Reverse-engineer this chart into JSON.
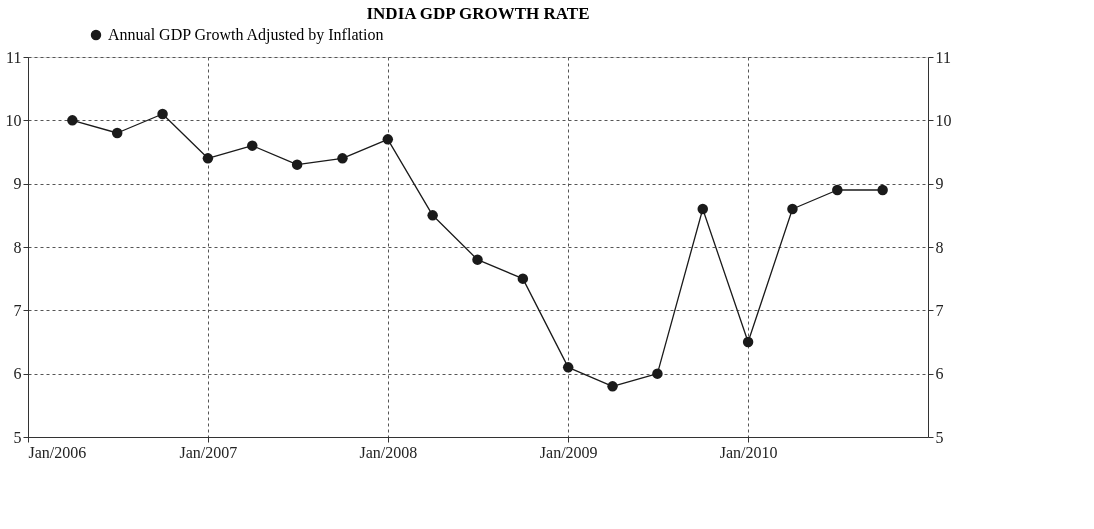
{
  "chart_data": {
    "type": "line",
    "title": "INDIA GDP GROWTH RATE",
    "x": [
      "2006-04",
      "2006-07",
      "2006-10",
      "2007-01",
      "2007-04",
      "2007-07",
      "2007-10",
      "2008-01",
      "2008-04",
      "2008-07",
      "2008-10",
      "2009-01",
      "2009-04",
      "2009-07",
      "2009-10",
      "2010-01",
      "2010-04",
      "2010-07",
      "2010-10"
    ],
    "series": [
      {
        "name": "Annual GDP Growth Adjusted by Inflation",
        "color": "#1a1a1a",
        "values": [
          10.0,
          9.8,
          10.1,
          9.4,
          9.6,
          9.3,
          9.4,
          9.7,
          8.5,
          7.8,
          7.5,
          6.1,
          5.8,
          6.0,
          8.6,
          6.5,
          8.6,
          8.9,
          8.9
        ]
      }
    ],
    "xlim": [
      "2006-01",
      "2011-01"
    ],
    "xticks": [
      {
        "value": "2006-01",
        "label": "Jan/2006"
      },
      {
        "value": "2007-01",
        "label": "Jan/2007"
      },
      {
        "value": "2008-01",
        "label": "Jan/2008"
      },
      {
        "value": "2009-01",
        "label": "Jan/2009"
      },
      {
        "value": "2010-01",
        "label": "Jan/2010"
      }
    ],
    "ylim": [
      5,
      11
    ],
    "yticks": [
      5,
      6,
      7,
      8,
      9,
      10,
      11
    ],
    "y2lim": [
      5,
      11
    ],
    "y2ticks": [
      5,
      6,
      7,
      8,
      9,
      10,
      11
    ],
    "grid": true,
    "legend": "top left",
    "marker": "circle",
    "line_style": "solid"
  }
}
